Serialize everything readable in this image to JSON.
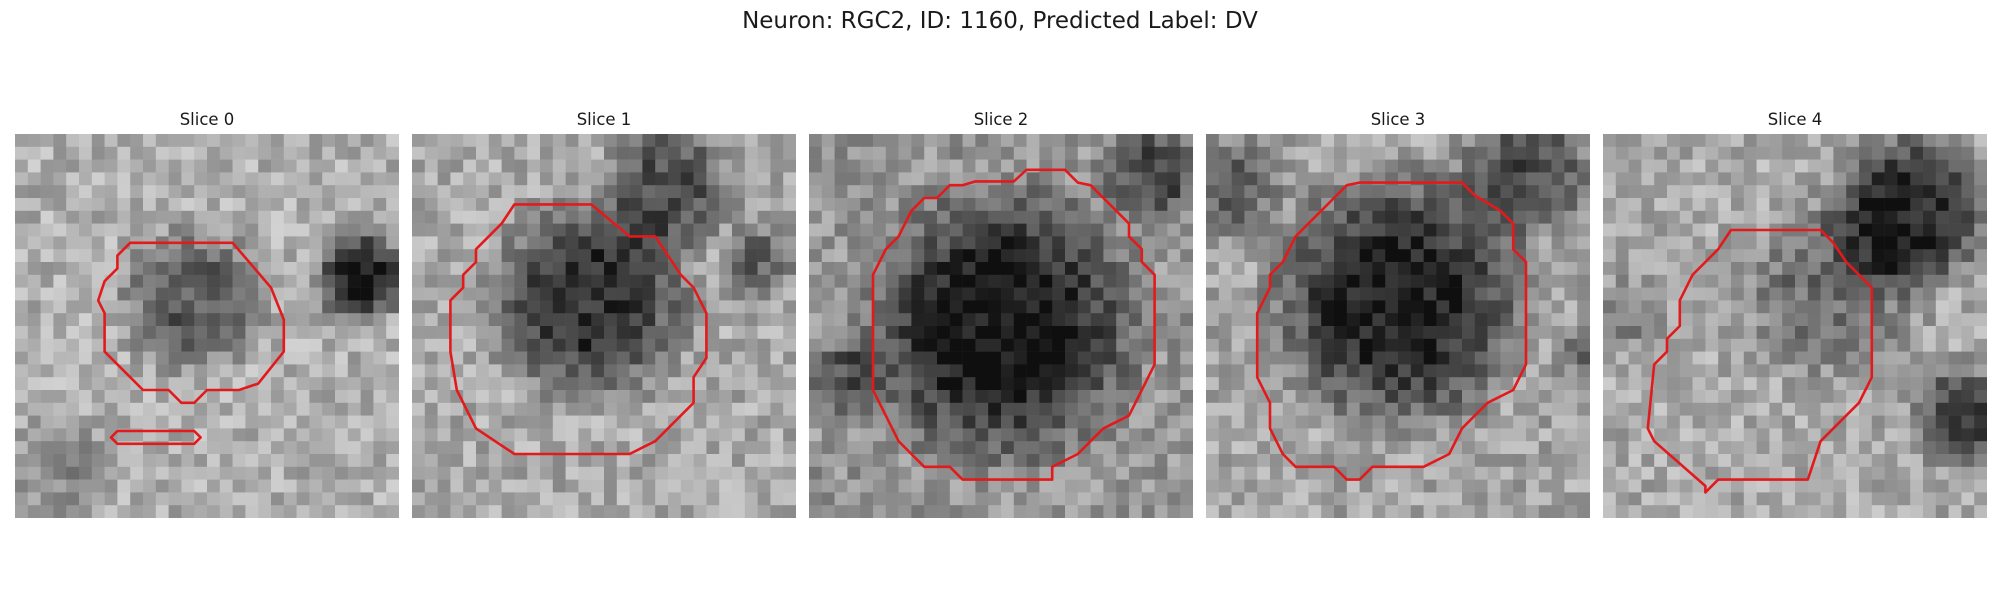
{
  "title": "Neuron: RGC2, ID: 1160, Predicted Label: DV",
  "colors": {
    "contour": "#e31a1c",
    "background": "#ffffff"
  },
  "panels": [
    {
      "label": "Slice 0"
    },
    {
      "label": "Slice 1"
    },
    {
      "label": "Slice 2"
    },
    {
      "label": "Slice 3"
    },
    {
      "label": "Slice 4"
    }
  ]
}
